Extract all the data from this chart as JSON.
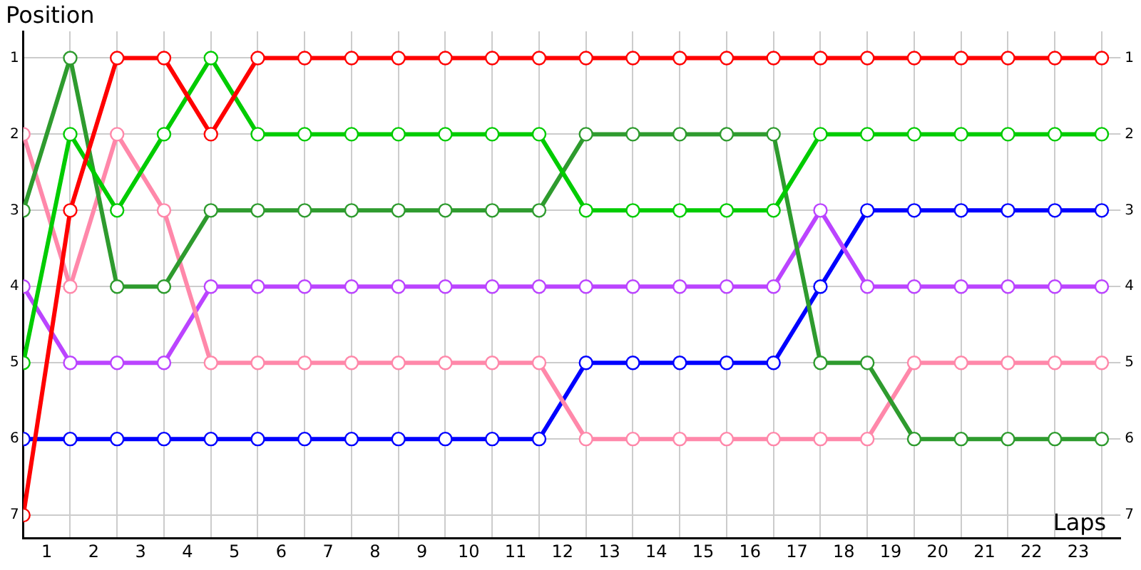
{
  "chart_data": {
    "type": "line",
    "xlabel": "Laps",
    "ylabel": "Position",
    "x": [
      0,
      1,
      2,
      3,
      4,
      5,
      6,
      7,
      8,
      9,
      10,
      11,
      12,
      13,
      14,
      15,
      16,
      17,
      18,
      19,
      20,
      21,
      22,
      23
    ],
    "series": [
      {
        "color": "#ff0000",
        "values": [
          7,
          3,
          1,
          1,
          2,
          1,
          1,
          1,
          1,
          1,
          1,
          1,
          1,
          1,
          1,
          1,
          1,
          1,
          1,
          1,
          1,
          1,
          1,
          1
        ]
      },
      {
        "color": "#00cc00",
        "values": [
          5,
          2,
          3,
          2,
          1,
          2,
          2,
          2,
          2,
          2,
          2,
          2,
          3,
          3,
          3,
          3,
          3,
          2,
          2,
          2,
          2,
          2,
          2,
          2
        ]
      },
      {
        "color": "#2e9b2e",
        "values": [
          3,
          1,
          4,
          4,
          3,
          3,
          3,
          3,
          3,
          3,
          3,
          3,
          2,
          2,
          2,
          2,
          2,
          5,
          5,
          6,
          6,
          6,
          6,
          6
        ]
      },
      {
        "color": "#ff88aa",
        "values": [
          2,
          4,
          2,
          3,
          5,
          5,
          5,
          5,
          5,
          5,
          5,
          5,
          6,
          6,
          6,
          6,
          6,
          6,
          6,
          5,
          5,
          5,
          5,
          5
        ]
      },
      {
        "color": "#bb44ff",
        "values": [
          4,
          5,
          5,
          5,
          4,
          4,
          4,
          4,
          4,
          4,
          4,
          4,
          4,
          4,
          4,
          4,
          4,
          3,
          4,
          4,
          4,
          4,
          4,
          4
        ]
      },
      {
        "color": "#0000ff",
        "values": [
          6,
          6,
          6,
          6,
          6,
          6,
          6,
          6,
          6,
          6,
          6,
          6,
          5,
          5,
          5,
          5,
          5,
          4,
          3,
          3,
          3,
          3,
          3,
          3
        ]
      }
    ],
    "xlim": [
      0,
      23.4
    ],
    "xticks": [
      {
        "value": 0,
        "label": null
      },
      {
        "value": 0.5,
        "label": "1"
      },
      {
        "value": 1,
        "label": null
      },
      {
        "value": 1.5,
        "label": "2"
      },
      {
        "value": 2,
        "label": null
      },
      {
        "value": 2.5,
        "label": "3"
      },
      {
        "value": 3,
        "label": null
      },
      {
        "value": 3.5,
        "label": "4"
      },
      {
        "value": 4,
        "label": null
      },
      {
        "value": 4.5,
        "label": "5"
      },
      {
        "value": 5,
        "label": null
      },
      {
        "value": 5.5,
        "label": "6"
      },
      {
        "value": 6,
        "label": null
      },
      {
        "value": 6.5,
        "label": "7"
      },
      {
        "value": 7,
        "label": null
      },
      {
        "value": 7.5,
        "label": "8"
      },
      {
        "value": 8,
        "label": null
      },
      {
        "value": 8.5,
        "label": "9"
      },
      {
        "value": 9,
        "label": null
      },
      {
        "value": 9.5,
        "label": "10"
      },
      {
        "value": 10,
        "label": null
      },
      {
        "value": 10.5,
        "label": "11"
      },
      {
        "value": 11,
        "label": null
      },
      {
        "value": 11.5,
        "label": "12"
      },
      {
        "value": 12,
        "label": null
      },
      {
        "value": 12.5,
        "label": "13"
      },
      {
        "value": 13,
        "label": null
      },
      {
        "value": 13.5,
        "label": "14"
      },
      {
        "value": 14,
        "label": null
      },
      {
        "value": 14.5,
        "label": "15"
      },
      {
        "value": 15,
        "label": null
      },
      {
        "value": 15.5,
        "label": "16"
      },
      {
        "value": 16,
        "label": null
      },
      {
        "value": 16.5,
        "label": "17"
      },
      {
        "value": 17,
        "label": null
      },
      {
        "value": 17.5,
        "label": "18"
      },
      {
        "value": 18,
        "label": null
      },
      {
        "value": 18.5,
        "label": "19"
      },
      {
        "value": 19,
        "label": null
      },
      {
        "value": 19.5,
        "label": "20"
      },
      {
        "value": 20,
        "label": null
      },
      {
        "value": 20.5,
        "label": "21"
      },
      {
        "value": 21,
        "label": null
      },
      {
        "value": 21.5,
        "label": "22"
      },
      {
        "value": 22,
        "label": null
      },
      {
        "value": 22.5,
        "label": "23"
      },
      {
        "value": 23,
        "label": null
      }
    ],
    "ylim": [
      7.3,
      0.65
    ],
    "yticks": [
      1,
      2,
      3,
      4,
      5,
      6,
      7
    ],
    "y2lim": [
      7.3,
      0.65
    ],
    "y2ticks": [
      1,
      2,
      3,
      4,
      5,
      6,
      7
    ],
    "grid": true,
    "marker": "circle",
    "line_style": "solid",
    "legend": false
  }
}
